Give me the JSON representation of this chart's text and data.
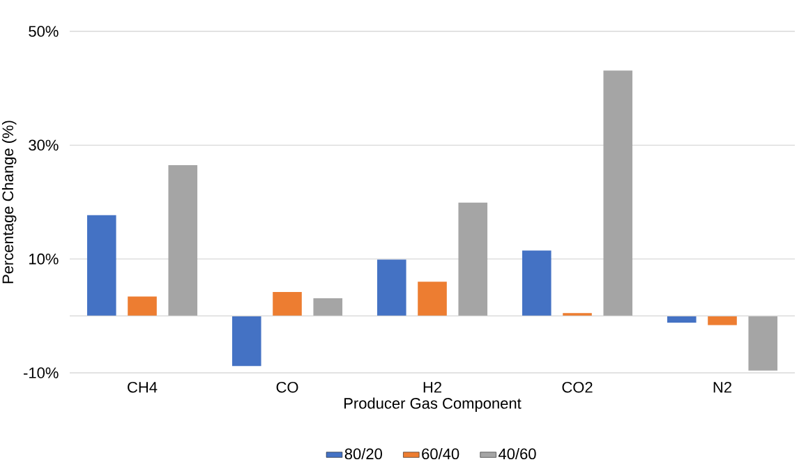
{
  "chart_data": {
    "type": "bar",
    "xlabel": "Producer Gas Component",
    "ylabel": "Percentage Change (%)",
    "categories": [
      "CH4",
      "CO",
      "H2",
      "CO2",
      "N2"
    ],
    "series": [
      {
        "name": "80/20",
        "color": "#4472c4",
        "values": [
          17.7,
          -8.8,
          9.9,
          11.5,
          -1.2
        ]
      },
      {
        "name": "60/40",
        "color": "#ed7d31",
        "values": [
          3.4,
          4.2,
          6.0,
          0.5,
          -1.6
        ]
      },
      {
        "name": "40/60",
        "color": "#a5a5a5",
        "values": [
          26.5,
          3.1,
          19.9,
          43.1,
          -9.6
        ]
      }
    ],
    "ylim": [
      -10,
      50
    ],
    "yticks": [
      {
        "value": -10,
        "label": "-10%"
      },
      {
        "value": 0,
        "label": null
      },
      {
        "value": 10,
        "label": "10%"
      },
      {
        "value": 30,
        "label": "30%"
      },
      {
        "value": 50,
        "label": "50%"
      }
    ],
    "grid": "y",
    "legend": "bottom"
  }
}
